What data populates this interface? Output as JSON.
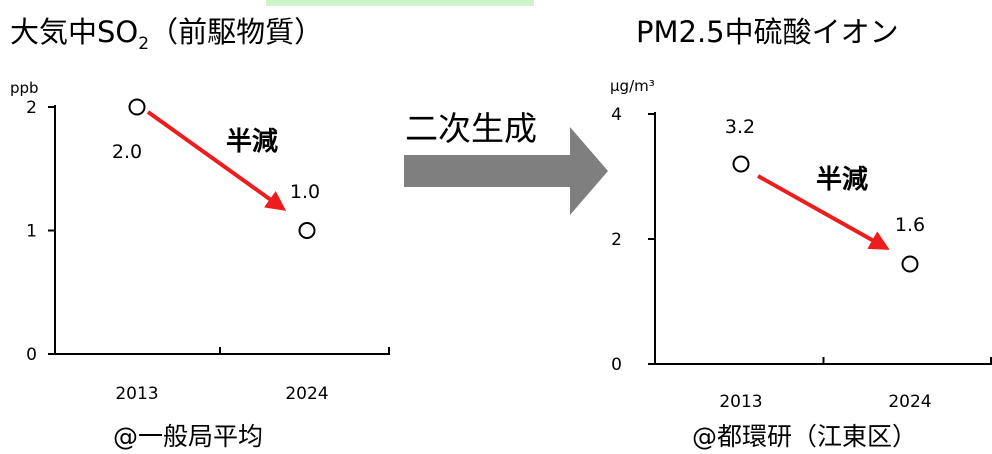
{
  "colors": {
    "top_strip": "#ccf5cc",
    "arrow_fill": "#7f7f7f",
    "trend_arrow": "#ee1c1c",
    "axis": "#000000",
    "marker_edge": "#000000"
  },
  "middle_arrow": {
    "label": "二次生成",
    "icon": "big-gray-right-arrow"
  },
  "chart_data": [
    {
      "type": "scatter",
      "title_main": "大気中SO",
      "title_sub": "2",
      "title_tail": "（前駆物質）",
      "unit": "ppb",
      "footer": "@一般局平均",
      "categories": [
        "2013",
        "2024"
      ],
      "values": [
        2.0,
        1.0
      ],
      "data_labels": [
        "2.0",
        "1.0"
      ],
      "yticks": [
        0,
        1,
        2
      ],
      "ytick_labels": [
        "0",
        "1",
        "2"
      ],
      "ylim": [
        0,
        2
      ],
      "annotation": "半減",
      "grid": false,
      "legend": "none"
    },
    {
      "type": "scatter",
      "title": "PM2.5中硫酸イオン",
      "unit": "μg/m³",
      "footer": "@都環研（江東区）",
      "categories": [
        "2013",
        "2024"
      ],
      "values": [
        3.2,
        1.6
      ],
      "data_labels": [
        "3.2",
        "1.6"
      ],
      "yticks": [
        0,
        2,
        4
      ],
      "ytick_labels": [
        "0",
        "2",
        "4"
      ],
      "ylim": [
        0,
        4
      ],
      "annotation": "半減",
      "grid": false,
      "legend": "none"
    }
  ]
}
